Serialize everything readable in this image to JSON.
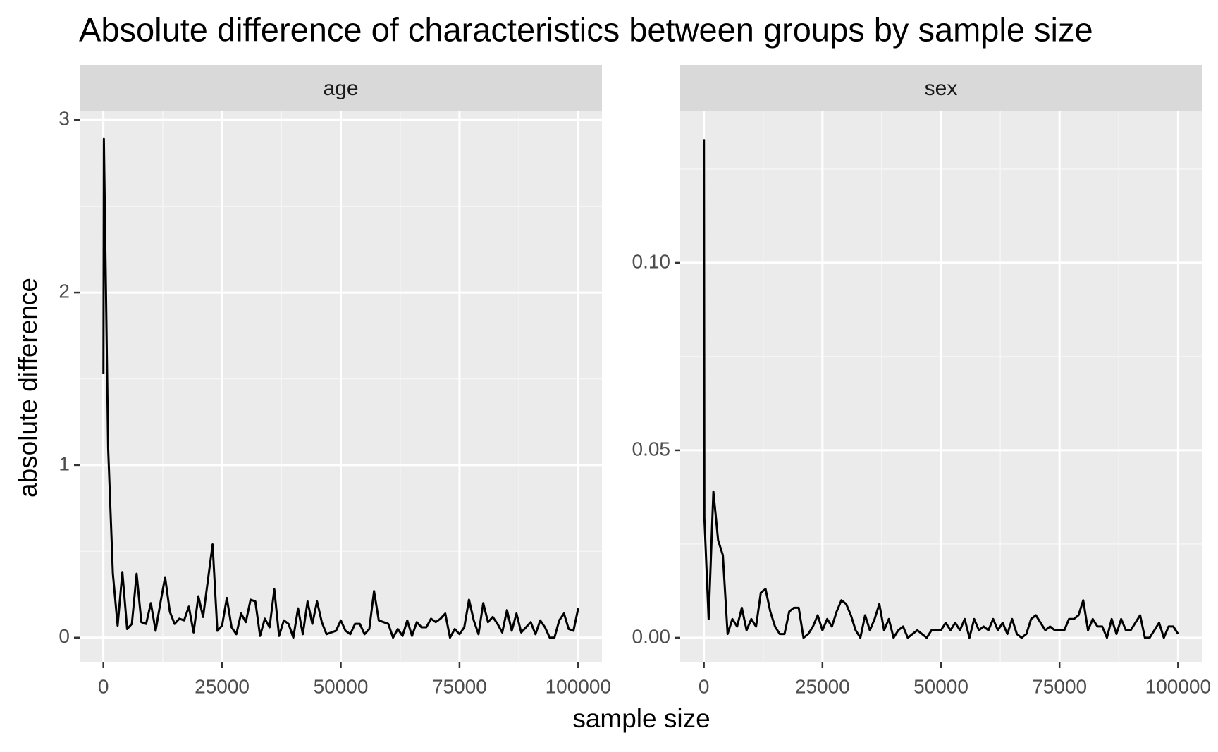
{
  "chart_data": {
    "type": "line",
    "title": "Absolute difference of characteristics between groups by sample size",
    "x_label": "sample size",
    "y_label": "absolute difference",
    "color": "#000000",
    "grid": true,
    "x": [
      10,
      100,
      1000,
      2000,
      3000,
      4000,
      5000,
      6000,
      7000,
      8000,
      9000,
      10000,
      11000,
      12000,
      13000,
      14000,
      15000,
      16000,
      17000,
      18000,
      19000,
      20000,
      21000,
      22000,
      23000,
      24000,
      25000,
      26000,
      27000,
      28000,
      29000,
      30000,
      31000,
      32000,
      33000,
      34000,
      35000,
      36000,
      37000,
      38000,
      39000,
      40000,
      41000,
      42000,
      43000,
      44000,
      45000,
      46000,
      47000,
      48000,
      49000,
      50000,
      51000,
      52000,
      53000,
      54000,
      55000,
      56000,
      57000,
      58000,
      59000,
      60000,
      61000,
      62000,
      63000,
      64000,
      65000,
      66000,
      67000,
      68000,
      69000,
      70000,
      71000,
      72000,
      73000,
      74000,
      75000,
      76000,
      77000,
      78000,
      79000,
      80000,
      81000,
      82000,
      83000,
      84000,
      85000,
      86000,
      87000,
      88000,
      89000,
      90000,
      91000,
      92000,
      93000,
      94000,
      95000,
      96000,
      97000,
      98000,
      99000,
      100000
    ],
    "xlim": [
      -5000,
      105000
    ],
    "xticks": [
      0,
      25000,
      50000,
      75000,
      100000
    ],
    "panels": [
      {
        "name": "age",
        "ylim": [
          -0.144,
          3.05
        ],
        "yticks": [
          0,
          1,
          2,
          3
        ],
        "values": [
          1.53,
          2.89,
          1.1,
          0.37,
          0.07,
          0.38,
          0.05,
          0.08,
          0.37,
          0.09,
          0.08,
          0.2,
          0.04,
          0.2,
          0.35,
          0.15,
          0.08,
          0.11,
          0.1,
          0.18,
          0.03,
          0.24,
          0.12,
          0.33,
          0.54,
          0.04,
          0.07,
          0.23,
          0.06,
          0.02,
          0.14,
          0.09,
          0.22,
          0.21,
          0.01,
          0.11,
          0.06,
          0.28,
          0.01,
          0.1,
          0.08,
          0.0,
          0.17,
          0.02,
          0.21,
          0.08,
          0.21,
          0.09,
          0.02,
          0.03,
          0.04,
          0.1,
          0.04,
          0.02,
          0.08,
          0.08,
          0.02,
          0.05,
          0.27,
          0.1,
          0.09,
          0.08,
          0.0,
          0.05,
          0.01,
          0.1,
          0.01,
          0.09,
          0.06,
          0.06,
          0.11,
          0.09,
          0.11,
          0.14,
          0.0,
          0.05,
          0.02,
          0.06,
          0.22,
          0.1,
          0.02,
          0.2,
          0.09,
          0.12,
          0.08,
          0.03,
          0.16,
          0.04,
          0.14,
          0.03,
          0.06,
          0.09,
          0.02,
          0.1,
          0.06,
          0.0,
          0.0,
          0.1,
          0.14,
          0.05,
          0.04,
          0.17
        ]
      },
      {
        "name": "sex",
        "ylim": [
          -0.0066,
          0.1404
        ],
        "yticks": [
          {
            "value": 0,
            "label": "0.00"
          },
          {
            "value": 0.05,
            "label": "0.05"
          },
          {
            "value": 0.1,
            "label": "0.10"
          }
        ],
        "values": [
          0.133,
          0.032,
          0.005,
          0.039,
          0.026,
          0.022,
          0.001,
          0.005,
          0.003,
          0.008,
          0.002,
          0.005,
          0.003,
          0.012,
          0.013,
          0.007,
          0.003,
          0.001,
          0.001,
          0.007,
          0.008,
          0.008,
          0.0,
          0.001,
          0.003,
          0.006,
          0.002,
          0.005,
          0.003,
          0.007,
          0.01,
          0.009,
          0.006,
          0.002,
          0.0,
          0.006,
          0.002,
          0.005,
          0.009,
          0.002,
          0.005,
          0.0,
          0.002,
          0.003,
          0.0,
          0.001,
          0.002,
          0.001,
          0.0,
          0.002,
          0.002,
          0.002,
          0.004,
          0.002,
          0.004,
          0.002,
          0.005,
          0.0,
          0.005,
          0.002,
          0.003,
          0.002,
          0.005,
          0.002,
          0.004,
          0.001,
          0.005,
          0.001,
          0.0,
          0.001,
          0.005,
          0.006,
          0.004,
          0.002,
          0.003,
          0.002,
          0.002,
          0.002,
          0.005,
          0.005,
          0.006,
          0.01,
          0.002,
          0.005,
          0.003,
          0.003,
          0.0,
          0.005,
          0.001,
          0.005,
          0.002,
          0.002,
          0.004,
          0.006,
          0.0,
          0.0,
          0.002,
          0.004,
          0.0,
          0.003,
          0.003,
          0.001
        ]
      }
    ]
  }
}
